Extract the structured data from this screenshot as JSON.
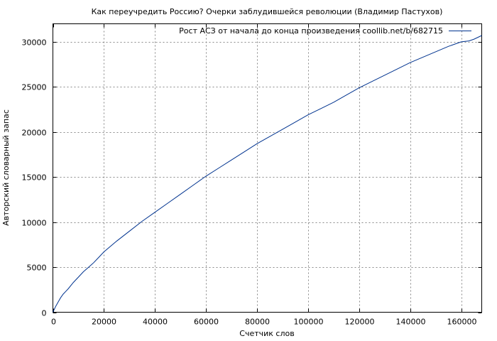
{
  "chart_data": {
    "type": "line",
    "title": "Как переучредить Россию? Очерки заблудившейся революции (Владимир Пастухов)",
    "xlabel": "Счетчик слов",
    "ylabel": "Авторский словарный запас",
    "xlim": [
      0,
      168000
    ],
    "ylim": [
      0,
      32000
    ],
    "xticks": [
      0,
      20000,
      40000,
      60000,
      80000,
      100000,
      120000,
      140000,
      160000
    ],
    "yticks": [
      0,
      5000,
      10000,
      15000,
      20000,
      25000,
      30000
    ],
    "grid": true,
    "legend_position": "top-right",
    "series": [
      {
        "name": "Рост АСЗ от начала до конца произведения coollib.net/b/682715",
        "color": "#00338f",
        "x": [
          0,
          1000,
          2000,
          3000,
          4000,
          5000,
          6000,
          8000,
          10000,
          12000,
          14000,
          16000,
          18000,
          20000,
          25000,
          30000,
          35000,
          40000,
          45000,
          50000,
          55000,
          60000,
          65000,
          70000,
          75000,
          80000,
          85000,
          90000,
          95000,
          100000,
          105000,
          110000,
          115000,
          120000,
          125000,
          130000,
          135000,
          140000,
          145000,
          150000,
          155000,
          160000,
          163000,
          165000,
          168000
        ],
        "y": [
          0,
          600,
          1100,
          1600,
          2000,
          2300,
          2600,
          3300,
          3900,
          4500,
          5000,
          5500,
          6100,
          6700,
          7900,
          9000,
          10100,
          11100,
          12100,
          13100,
          14100,
          15100,
          16000,
          16900,
          17800,
          18700,
          19500,
          20300,
          21100,
          21900,
          22600,
          23300,
          24100,
          24900,
          25600,
          26300,
          27000,
          27700,
          28300,
          28900,
          29500,
          30000,
          30100,
          30300,
          30700
        ]
      }
    ]
  }
}
